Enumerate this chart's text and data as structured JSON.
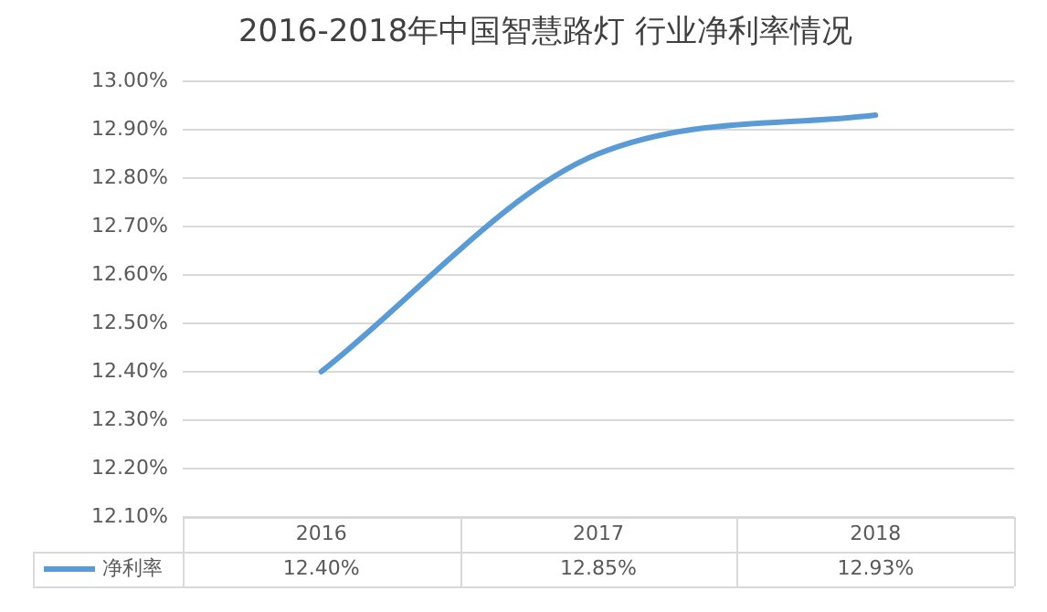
{
  "chart_data": {
    "type": "line",
    "title": "2016-2018年中国智慧路灯 行业净利率情况",
    "categories": [
      "2016",
      "2017",
      "2018"
    ],
    "series": [
      {
        "name": "净利率",
        "color": "#5b9bd5",
        "values": [
          12.4,
          12.85,
          12.93
        ],
        "value_labels": [
          "12.40%",
          "12.85%",
          "12.93%"
        ]
      }
    ],
    "ylim": [
      12.1,
      13.0
    ],
    "yticks": [
      {
        "value": 12.1,
        "label": "12.10%"
      },
      {
        "value": 12.2,
        "label": "12.20%"
      },
      {
        "value": 12.3,
        "label": "12.30%"
      },
      {
        "value": 12.4,
        "label": "12.40%"
      },
      {
        "value": 12.5,
        "label": "12.50%"
      },
      {
        "value": 12.6,
        "label": "12.60%"
      },
      {
        "value": 12.7,
        "label": "12.70%"
      },
      {
        "value": 12.8,
        "label": "12.80%"
      },
      {
        "value": 12.9,
        "label": "12.90%"
      },
      {
        "value": 13.0,
        "label": "13.00%"
      }
    ],
    "grid": "y",
    "legend": "bottom",
    "marker": "none"
  }
}
